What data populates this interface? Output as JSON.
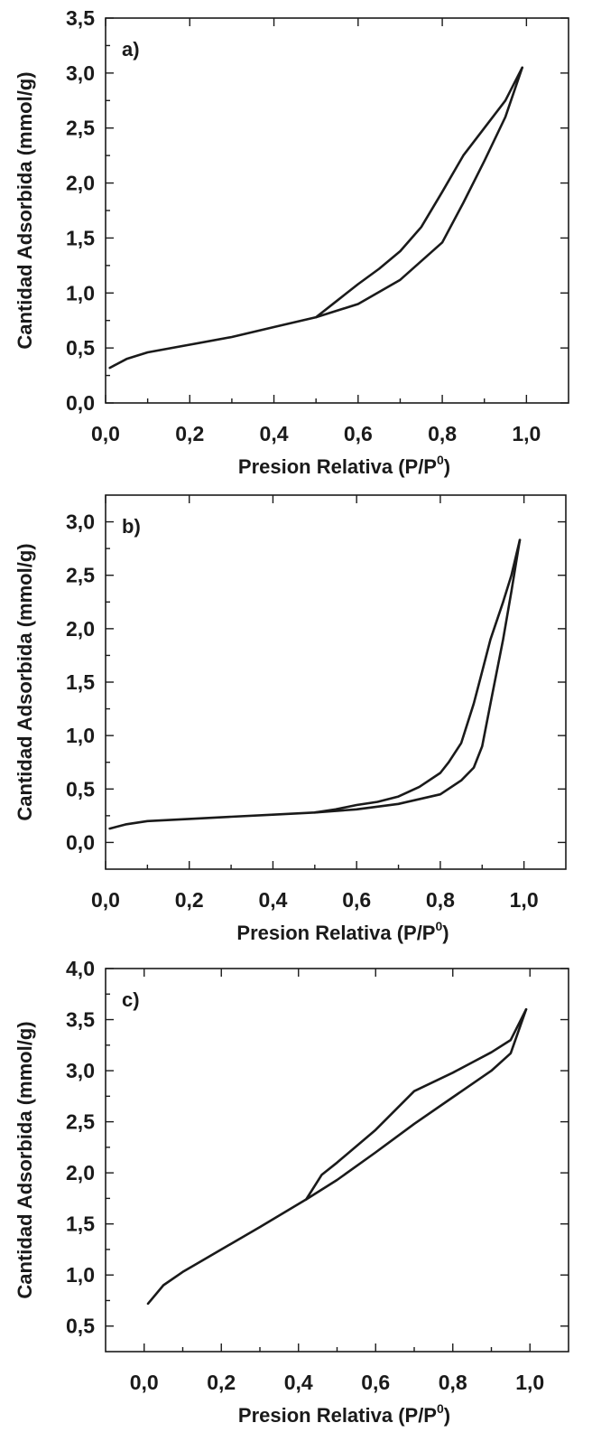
{
  "chart_data": [
    {
      "type": "line",
      "panel_label": "a)",
      "xlabel": "Presion Relativa (P/P",
      "xlabel_sup": "0",
      "xlabel_close": ")",
      "ylabel": "Cantidad Adsorbida (mmol/g)",
      "xlim": [
        0.0,
        1.1
      ],
      "ylim": [
        0.0,
        3.5
      ],
      "xticks": [
        "0,0",
        "0,2",
        "0,4",
        "0,6",
        "0,8",
        "1,0"
      ],
      "xtick_values": [
        0.0,
        0.2,
        0.4,
        0.6,
        0.8,
        1.0
      ],
      "yticks": [
        "0,0",
        "0,5",
        "1,0",
        "1,5",
        "2,0",
        "2,5",
        "3,0",
        "3,5"
      ],
      "ytick_values": [
        0.0,
        0.5,
        1.0,
        1.5,
        2.0,
        2.5,
        3.0,
        3.5
      ],
      "grid": false,
      "series": [
        {
          "x": [
            0.01,
            0.05,
            0.1,
            0.2,
            0.3,
            0.4,
            0.5,
            0.6,
            0.7,
            0.8,
            0.85,
            0.9,
            0.95,
            0.99
          ],
          "y": [
            0.32,
            0.4,
            0.46,
            0.53,
            0.6,
            0.69,
            0.78,
            0.9,
            1.12,
            1.46,
            1.82,
            2.2,
            2.6,
            3.05
          ]
        },
        {
          "x": [
            0.99,
            0.95,
            0.9,
            0.85,
            0.8,
            0.75,
            0.7,
            0.65,
            0.6,
            0.55,
            0.5
          ],
          "y": [
            3.05,
            2.75,
            2.5,
            2.25,
            1.92,
            1.6,
            1.38,
            1.22,
            1.08,
            0.93,
            0.78
          ]
        }
      ]
    },
    {
      "type": "line",
      "panel_label": "b)",
      "xlabel": "Presion Relativa (P/P",
      "xlabel_sup": "0",
      "xlabel_close": ")",
      "ylabel": "Cantidad Adsorbida (mmol/g)",
      "xlim": [
        0.0,
        1.1
      ],
      "ylim": [
        -0.25,
        3.25
      ],
      "xticks": [
        "0,0",
        "0,2",
        "0,4",
        "0,6",
        "0,8",
        "1,0"
      ],
      "xtick_values": [
        0.0,
        0.2,
        0.4,
        0.6,
        0.8,
        1.0
      ],
      "yticks": [
        "0,0",
        "0,5",
        "1,0",
        "1,5",
        "2,0",
        "2,5",
        "3,0"
      ],
      "ytick_values": [
        0.0,
        0.5,
        1.0,
        1.5,
        2.0,
        2.5,
        3.0
      ],
      "grid": false,
      "series": [
        {
          "x": [
            0.01,
            0.05,
            0.1,
            0.2,
            0.3,
            0.4,
            0.5,
            0.6,
            0.7,
            0.8,
            0.85,
            0.88,
            0.9,
            0.92,
            0.95,
            0.97,
            0.99
          ],
          "y": [
            0.13,
            0.17,
            0.2,
            0.22,
            0.24,
            0.26,
            0.28,
            0.31,
            0.36,
            0.45,
            0.58,
            0.7,
            0.9,
            1.3,
            1.9,
            2.35,
            2.83
          ]
        },
        {
          "x": [
            0.99,
            0.97,
            0.95,
            0.92,
            0.9,
            0.88,
            0.85,
            0.82,
            0.8,
            0.75,
            0.7,
            0.65,
            0.6,
            0.55,
            0.5
          ],
          "y": [
            2.83,
            2.5,
            2.25,
            1.9,
            1.6,
            1.3,
            0.93,
            0.75,
            0.65,
            0.52,
            0.43,
            0.38,
            0.35,
            0.31,
            0.28
          ]
        }
      ]
    },
    {
      "type": "line",
      "panel_label": "c)",
      "xlabel": "Presion Relativa (P/P",
      "xlabel_sup": "0",
      "xlabel_close": ")",
      "ylabel": "Cantidad Adsorbida (mmol/g)",
      "xlim": [
        -0.1,
        1.1
      ],
      "ylim": [
        0.25,
        4.0
      ],
      "xticks": [
        "0,0",
        "0,2",
        "0,4",
        "0,6",
        "0,8",
        "1,0"
      ],
      "xtick_values": [
        0.0,
        0.2,
        0.4,
        0.6,
        0.8,
        1.0
      ],
      "yticks": [
        "0,5",
        "1,0",
        "1,5",
        "2,0",
        "2,5",
        "3,0",
        "3,5",
        "4,0"
      ],
      "ytick_values": [
        0.5,
        1.0,
        1.5,
        2.0,
        2.5,
        3.0,
        3.5,
        4.0
      ],
      "grid": false,
      "series": [
        {
          "x": [
            0.01,
            0.05,
            0.1,
            0.2,
            0.3,
            0.42,
            0.5,
            0.6,
            0.7,
            0.8,
            0.9,
            0.95,
            0.99
          ],
          "y": [
            0.72,
            0.9,
            1.03,
            1.25,
            1.47,
            1.74,
            1.93,
            2.2,
            2.48,
            2.74,
            3.0,
            3.17,
            3.6
          ]
        },
        {
          "x": [
            0.99,
            0.95,
            0.9,
            0.85,
            0.8,
            0.7,
            0.6,
            0.5,
            0.46,
            0.42
          ],
          "y": [
            3.6,
            3.3,
            3.18,
            3.08,
            2.98,
            2.8,
            2.42,
            2.1,
            1.98,
            1.74
          ]
        }
      ]
    }
  ]
}
